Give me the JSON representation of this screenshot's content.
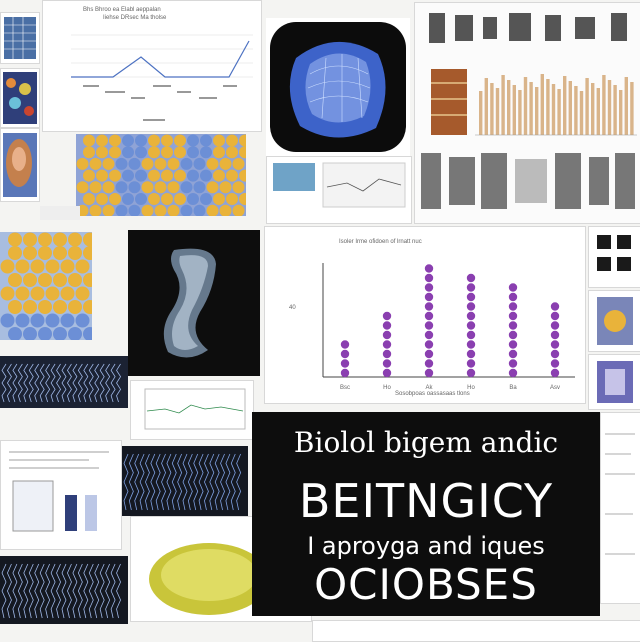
{
  "banner": {
    "line1": "Biolol bigem andic",
    "line2": "BEITNGICY",
    "line3": "I aproyga and iques",
    "line4": "OCIOBSES"
  },
  "bar_panel": {
    "title": "Isoler Irme ofidoen of lrnatt nuc",
    "ytick": "40",
    "categories": [
      "Bsc",
      "Ho",
      "Ak",
      "Ho",
      "Ba",
      "Asv"
    ],
    "footer": "Sosobpoas oassasaas tlons"
  },
  "top_chart": {
    "title1": "Bhs Bhroo ea Elabl aeppalan",
    "title2": "Iiehse DRsec Ma tholse"
  },
  "colors": {
    "banner_bg": "#0d0d0d",
    "bead": "#8a3fb0",
    "cell_yellow": "#e9b33a",
    "cell_blue": "#6c8fd6",
    "organ_blue": "#3d63c9"
  }
}
